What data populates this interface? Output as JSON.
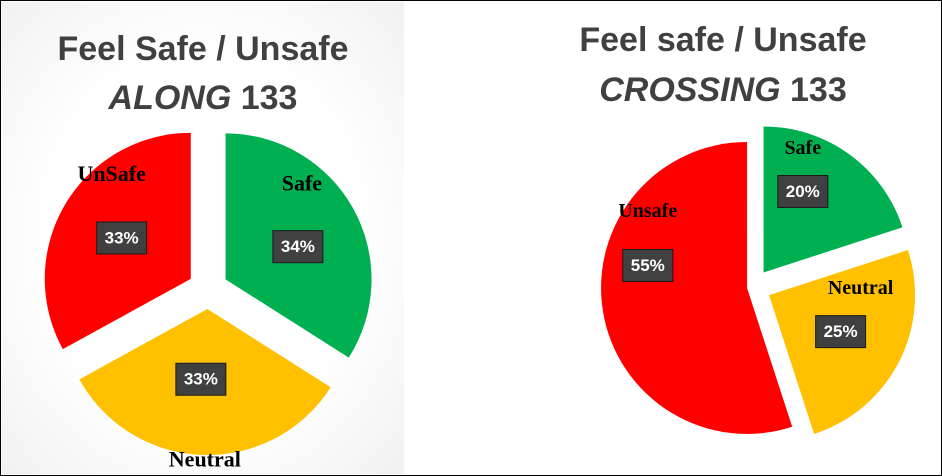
{
  "chart_data": [
    {
      "type": "pie",
      "title_line1": "Feel Safe / Unsafe",
      "title_line2_italic": "ALONG",
      "title_line2_rest": " 133",
      "slices": [
        {
          "label": "Safe",
          "value": 34,
          "value_label": "34%",
          "color": "#00b050"
        },
        {
          "label": "Neutral",
          "value": 33,
          "value_label": "33%",
          "color": "#ffc000"
        },
        {
          "label": "UnSafe",
          "value": 33,
          "value_label": "33%",
          "color": "#ff0000"
        }
      ]
    },
    {
      "type": "pie",
      "title_line1": "Feel safe / Unsafe",
      "title_line2_italic": "CROSSING",
      "title_line2_rest": " 133",
      "slices": [
        {
          "label": "Safe",
          "value": 20,
          "value_label": "20%",
          "color": "#00b050"
        },
        {
          "label": "Neutral",
          "value": 25,
          "value_label": "25%",
          "color": "#ffc000"
        },
        {
          "label": "Unsafe",
          "value": 55,
          "value_label": "55%",
          "color": "#ff0000"
        }
      ]
    }
  ],
  "colors": {
    "title": "#404040",
    "value_box": "#404040",
    "value_box_border": "#1a1a1a"
  }
}
